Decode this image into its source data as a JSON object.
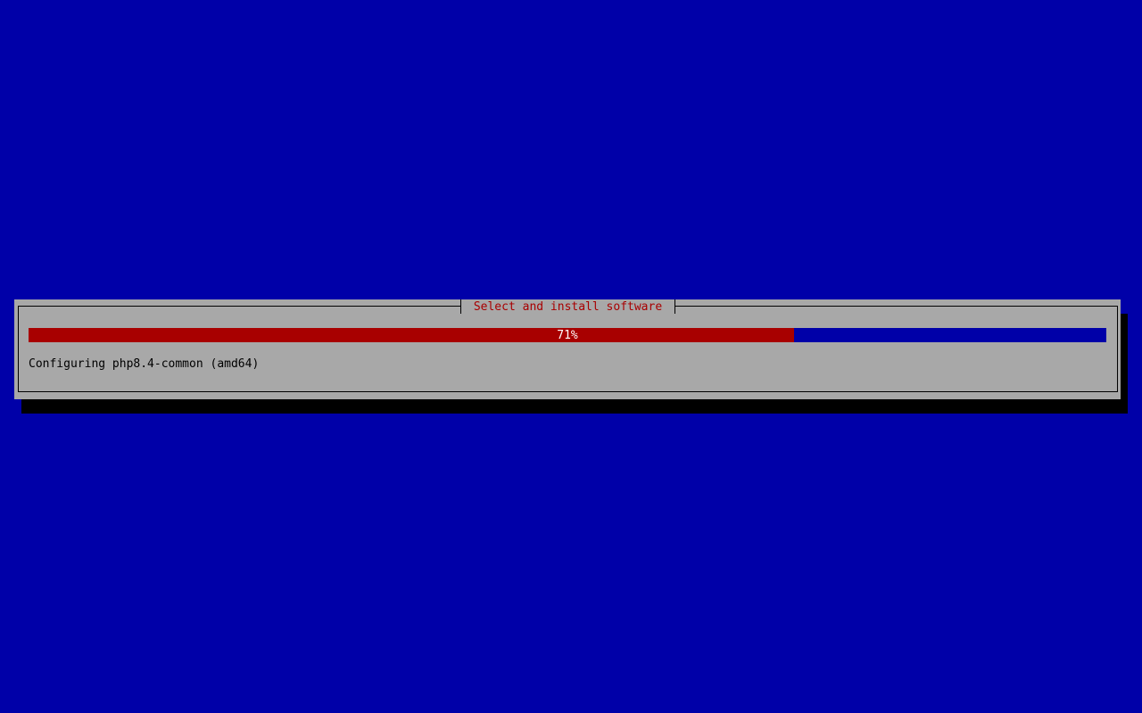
{
  "dialog": {
    "title": "Select and install software",
    "progress": {
      "percent": 71,
      "label": "71%"
    },
    "status": "Configuring php8.4-common (amd64)"
  },
  "colors": {
    "background": "#0000a8",
    "dialog": "#a8a8a8",
    "progress_fill": "#a80000",
    "title": "#a80000"
  }
}
